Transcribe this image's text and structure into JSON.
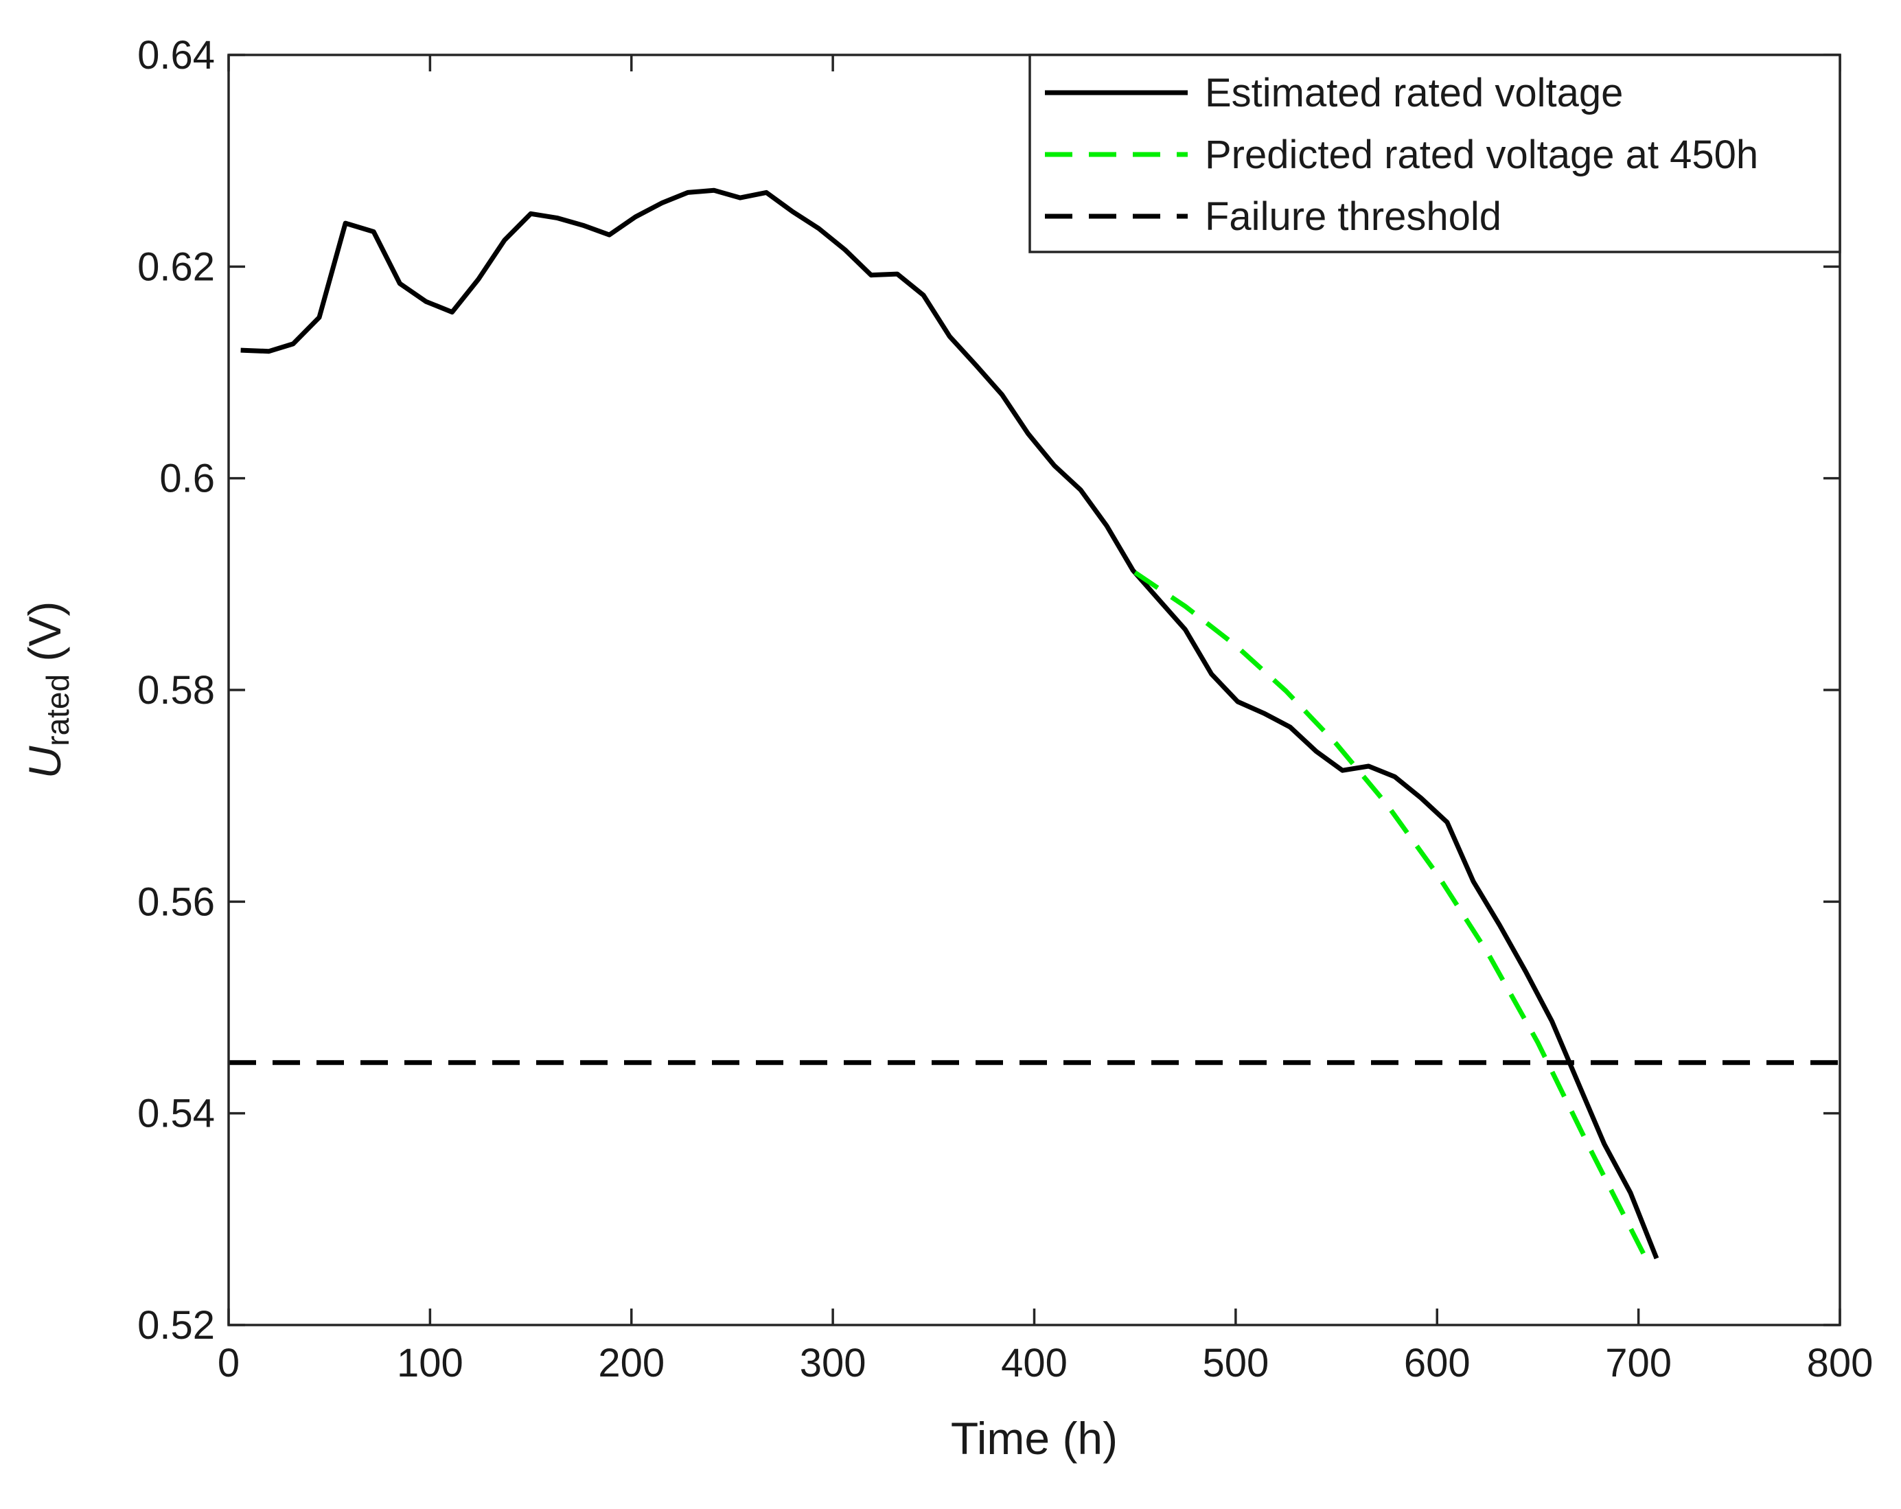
{
  "chart_data": {
    "type": "line",
    "title": "",
    "xlabel": "Time (h)",
    "ylabel": {
      "main": "U",
      "sub": "rated",
      "unit": " (V)"
    },
    "xlim": [
      0,
      800
    ],
    "ylim": [
      0.52,
      0.64
    ],
    "xticks": [
      0,
      100,
      200,
      300,
      400,
      500,
      600,
      700,
      800
    ],
    "xtick_labels": [
      "0",
      "100",
      "200",
      "300",
      "400",
      "500",
      "600",
      "700",
      "800"
    ],
    "yticks": [
      0.52,
      0.54,
      0.56,
      0.58,
      0.6,
      0.62,
      0.64
    ],
    "ytick_labels": [
      "0.52",
      "0.54",
      "0.56",
      "0.58",
      "0.6",
      "0.62",
      "0.64"
    ],
    "grid": false,
    "legend_position": "top-right",
    "series": [
      {
        "name": "Estimated rated voltage",
        "style": "solid",
        "color": "#000000",
        "x": [
          6,
          20,
          32,
          45,
          58,
          72,
          85,
          98,
          111,
          124,
          137,
          150,
          163,
          176,
          189,
          202,
          215,
          228,
          241,
          254,
          267,
          280,
          293,
          306,
          319,
          332,
          345,
          358,
          371,
          384,
          397,
          410,
          423,
          436,
          449,
          462,
          475,
          488,
          501,
          514,
          527,
          540,
          553,
          566,
          579,
          592,
          605,
          618,
          631,
          644,
          657,
          670,
          683,
          696,
          709
        ],
        "y": [
          0.6121,
          0.612,
          0.6127,
          0.6152,
          0.6241,
          0.6233,
          0.6184,
          0.6167,
          0.6157,
          0.6188,
          0.6225,
          0.625,
          0.6246,
          0.6239,
          0.623,
          0.6247,
          0.626,
          0.627,
          0.6272,
          0.6265,
          0.627,
          0.6252,
          0.6236,
          0.6216,
          0.6192,
          0.6193,
          0.6173,
          0.6134,
          0.6107,
          0.6079,
          0.6042,
          0.6012,
          0.5989,
          0.5955,
          0.5913,
          0.5885,
          0.5857,
          0.5815,
          0.5789,
          0.5778,
          0.5765,
          0.5742,
          0.5724,
          0.5728,
          0.5718,
          0.5698,
          0.5675,
          0.5619,
          0.5578,
          0.5534,
          0.5487,
          0.5429,
          0.5371,
          0.5325,
          0.5263
        ]
      },
      {
        "name": "Predicted rated voltage at 450h",
        "style": "dashed",
        "color": "#00ee00",
        "x": [
          450,
          475,
          500,
          525,
          550,
          575,
          600,
          625,
          650,
          675,
          705
        ],
        "y": [
          0.5911,
          0.5879,
          0.5842,
          0.5799,
          0.5749,
          0.5692,
          0.5626,
          0.5552,
          0.5467,
          0.537,
          0.5258
        ]
      },
      {
        "name": "Failure threshold",
        "style": "dashed",
        "color": "#000000",
        "x": [
          0,
          800
        ],
        "y": [
          0.5448,
          0.5448
        ]
      }
    ]
  }
}
